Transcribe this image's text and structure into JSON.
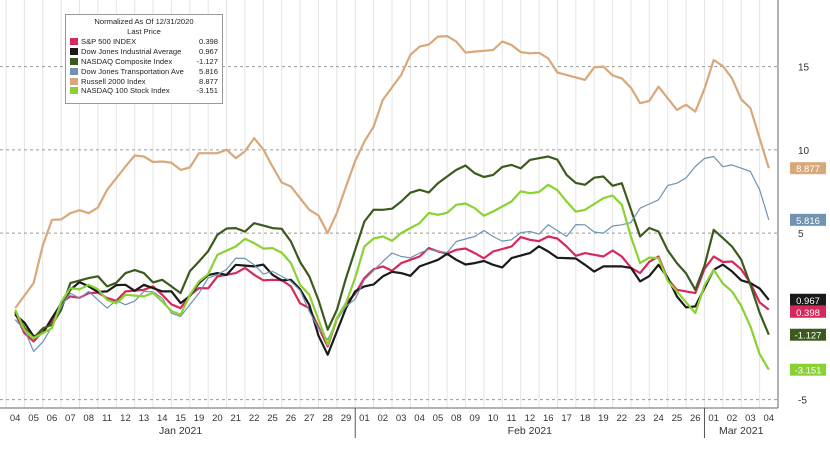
{
  "chart_data": {
    "type": "line",
    "legend_title": "Normalized As Of 12/31/2020",
    "legend_subtitle": "Last Price",
    "x_labels": [
      "04",
      "05",
      "06",
      "07",
      "08",
      "11",
      "12",
      "13",
      "14",
      "15",
      "19",
      "20",
      "21",
      "22",
      "25",
      "26",
      "27",
      "28",
      "29",
      "01",
      "02",
      "03",
      "04",
      "05",
      "08",
      "09",
      "10",
      "11",
      "12",
      "16",
      "17",
      "18",
      "19",
      "22",
      "23",
      "24",
      "25",
      "26",
      "01",
      "02",
      "03",
      "04"
    ],
    "months": [
      "Jan 2021",
      "Feb 2021",
      "Mar 2021"
    ],
    "y_ticks": [
      -5,
      5,
      10,
      15
    ],
    "y_tick_labels": [
      "-5",
      "5",
      "10",
      "15"
    ],
    "ylim": [
      -5.5,
      19
    ],
    "grid": true,
    "legend_position": "top-left",
    "series": [
      {
        "name": "S&P 500 INDEX",
        "value_label": "0.398",
        "color": "#d6285a",
        "values": [
          0.2,
          -1.5,
          -0.3,
          1.2,
          1.4,
          1.1,
          1.5,
          1.6,
          1.3,
          0.5,
          1.7,
          2.4,
          2.6,
          2.5,
          2.2,
          1.8,
          0.5,
          -1.8,
          0.8,
          2.3,
          3.0,
          3.2,
          3.6,
          3.9,
          4.0,
          3.8,
          3.9,
          4.2,
          4.6,
          4.8,
          4.2,
          3.8,
          3.6,
          3.6,
          2.6,
          3.6,
          1.6,
          1.4,
          3.6,
          3.3,
          2.0,
          0.4
        ]
      },
      {
        "name": "Dow Jones Industrial Average",
        "value_label": "0.967",
        "color": "#1a1a1a",
        "values": [
          0.1,
          -1.2,
          -0.1,
          1.6,
          1.8,
          1.5,
          1.9,
          1.9,
          1.5,
          0.8,
          2.0,
          2.6,
          3.1,
          3.0,
          2.5,
          2.2,
          0.7,
          -2.3,
          0.5,
          1.8,
          2.4,
          2.6,
          3.0,
          3.4,
          3.4,
          3.2,
          3.1,
          3.5,
          3.8,
          3.9,
          3.5,
          3.1,
          3.0,
          3.0,
          2.1,
          3.1,
          1.2,
          0.6,
          2.8,
          2.7,
          2.0,
          1.0
        ]
      },
      {
        "name": "NASDAQ Composite Index",
        "value_label": "-1.127",
        "color": "#3d5a1e",
        "values": [
          0.3,
          -1.3,
          -0.5,
          2.0,
          2.3,
          1.8,
          2.6,
          2.6,
          2.2,
          1.4,
          3.3,
          4.9,
          5.3,
          5.6,
          5.3,
          4.5,
          2.4,
          -0.8,
          2.3,
          5.7,
          6.4,
          6.9,
          7.6,
          8.0,
          8.8,
          8.6,
          8.5,
          9.1,
          9.4,
          9.6,
          8.5,
          7.9,
          8.4,
          8.0,
          4.8,
          5.1,
          3.2,
          1.6,
          5.2,
          4.2,
          1.9,
          -1.1
        ]
      },
      {
        "name": "Dow Jones Transportation Average",
        "value_label": "5.816",
        "color": "#6f93b1",
        "values": [
          -0.2,
          -2.1,
          -0.6,
          1.4,
          1.5,
          0.5,
          0.7,
          1.5,
          1.1,
          0.0,
          1.4,
          2.5,
          3.5,
          3.1,
          2.7,
          2.1,
          0.3,
          -1.4,
          0.6,
          2.2,
          3.3,
          3.6,
          3.8,
          3.9,
          4.5,
          4.8,
          4.8,
          4.6,
          5.1,
          5.5,
          4.8,
          5.5,
          5.0,
          5.5,
          6.5,
          7.0,
          8.0,
          9.0,
          9.6,
          9.1,
          8.7,
          5.8
        ]
      },
      {
        "name": "Russell 2000 Index",
        "value_label": "8.877",
        "color": "#d9a87a",
        "values": [
          0.5,
          2.0,
          5.8,
          6.2,
          6.2,
          7.6,
          9.0,
          9.6,
          9.3,
          8.8,
          9.8,
          9.8,
          9.5,
          10.7,
          9.0,
          7.8,
          6.4,
          5.0,
          7.8,
          10.5,
          13.0,
          14.5,
          16.2,
          16.8,
          16.5,
          15.9,
          16.0,
          16.3,
          15.8,
          15.5,
          14.5,
          14.2,
          15.0,
          14.3,
          12.8,
          13.8,
          12.4,
          12.3,
          15.4,
          14.3,
          12.5,
          8.9
        ]
      },
      {
        "name": "NASDAQ 100 Stock Index",
        "value_label": "-3.151",
        "color": "#8ad232",
        "values": [
          0.4,
          -1.3,
          -0.7,
          1.7,
          1.9,
          1.0,
          1.3,
          1.2,
          0.9,
          0.1,
          2.1,
          3.7,
          4.2,
          4.4,
          4.1,
          3.2,
          1.3,
          -1.7,
          0.8,
          4.2,
          4.8,
          5.0,
          5.6,
          6.1,
          6.7,
          6.5,
          6.3,
          6.9,
          7.4,
          7.9,
          6.9,
          6.4,
          7.1,
          6.7,
          3.2,
          3.5,
          1.5,
          0.2,
          2.8,
          1.5,
          -0.6,
          -3.2
        ]
      }
    ]
  }
}
